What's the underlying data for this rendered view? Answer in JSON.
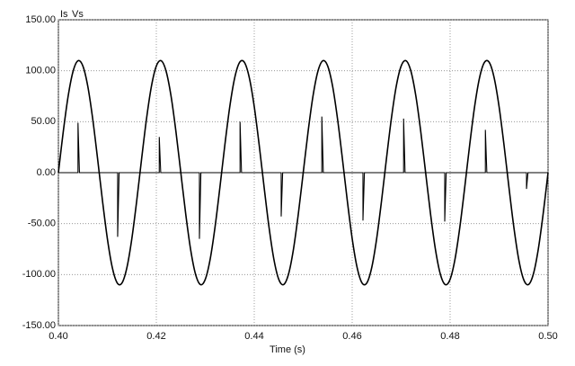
{
  "chart_data": {
    "type": "line",
    "xlabel": "Time (s)",
    "xlim": [
      0.4,
      0.5
    ],
    "xticks": [
      {
        "value": 0.4,
        "label": "0.40"
      },
      {
        "value": 0.42,
        "label": "0.42"
      },
      {
        "value": 0.44,
        "label": "0.44"
      },
      {
        "value": 0.46,
        "label": "0.46"
      },
      {
        "value": 0.48,
        "label": "0.48"
      },
      {
        "value": 0.5,
        "label": "0.50"
      }
    ],
    "ylim": [
      -150,
      150
    ],
    "yticks": [
      {
        "value": -150,
        "label": "-150.00"
      },
      {
        "value": -100,
        "label": "-100.00"
      },
      {
        "value": -50,
        "label": "-50.00"
      },
      {
        "value": 0,
        "label": "0.00"
      },
      {
        "value": 50,
        "label": "50.00"
      },
      {
        "value": 100,
        "label": "100.00"
      },
      {
        "value": 150,
        "label": "150.00"
      }
    ],
    "grid": true,
    "x": [
      0.4,
      0.401,
      0.402,
      0.403,
      0.404,
      0.405,
      0.406,
      0.407,
      0.408,
      0.409,
      0.41,
      0.411,
      0.412,
      0.413,
      0.414,
      0.415,
      0.416,
      0.417,
      0.418,
      0.419,
      0.42,
      0.421,
      0.422,
      0.423,
      0.424,
      0.425,
      0.426,
      0.427,
      0.428,
      0.429,
      0.43,
      0.431,
      0.432,
      0.433,
      0.434,
      0.435,
      0.436,
      0.437,
      0.438,
      0.439,
      0.44,
      0.441,
      0.442,
      0.443,
      0.444,
      0.445,
      0.446,
      0.447,
      0.448,
      0.449,
      0.45,
      0.451,
      0.452,
      0.453,
      0.454,
      0.455,
      0.456,
      0.457,
      0.458,
      0.459,
      0.46,
      0.461,
      0.462,
      0.463,
      0.464,
      0.465,
      0.466,
      0.467,
      0.468,
      0.469,
      0.47,
      0.471,
      0.472,
      0.473,
      0.474,
      0.475,
      0.476,
      0.477,
      0.478,
      0.479,
      0.48,
      0.481,
      0.482,
      0.483,
      0.484,
      0.485,
      0.486,
      0.487,
      0.488,
      0.489,
      0.49,
      0.491,
      0.492,
      0.493,
      0.494,
      0.495,
      0.496,
      0.497,
      0.498,
      0.499,
      0.5
    ],
    "series": [
      {
        "name": "Is",
        "color": "#000000",
        "x": [
          0.4,
          0.404,
          0.404,
          0.4043,
          0.4121,
          0.4121,
          0.4124,
          0.4206,
          0.4206,
          0.4209,
          0.4288,
          0.4288,
          0.4291,
          0.4371,
          0.4371,
          0.4374,
          0.4455,
          0.4455,
          0.4458,
          0.4538,
          0.4538,
          0.4541,
          0.4622,
          0.4622,
          0.4625,
          0.4705,
          0.4705,
          0.4708,
          0.4789,
          0.4789,
          0.4792,
          0.4872,
          0.4872,
          0.4875,
          0.4956,
          0.4956,
          0.4959,
          0.5
        ],
        "values": [
          0,
          0,
          49,
          0,
          0,
          -63,
          0,
          0,
          35,
          0,
          0,
          -65,
          0,
          0,
          50,
          0,
          0,
          -43,
          0,
          0,
          55,
          0,
          0,
          -47,
          0,
          0,
          53,
          0,
          0,
          -48,
          0,
          0,
          42,
          0,
          0,
          -16,
          0,
          0
        ]
      },
      {
        "name": "Vs",
        "color": "#000000",
        "values": [
          0,
          40.5,
          75.3,
          99.5,
          109.8,
          104.6,
          84.8,
          53.0,
          13.8,
          -27.4,
          -64.7,
          -92.9,
          -108.1,
          -108.1,
          -92.9,
          -64.7,
          -27.4,
          13.8,
          53.0,
          84.8,
          104.6,
          109.8,
          99.5,
          75.3,
          40.5,
          0,
          -40.5,
          -75.3,
          -99.5,
          -109.8,
          -104.6,
          -84.8,
          -53.0,
          -13.8,
          27.4,
          64.7,
          92.9,
          108.1,
          108.1,
          92.9,
          64.7,
          27.4,
          -13.8,
          -53.0,
          -84.8,
          -104.6,
          -109.8,
          -99.5,
          -75.3,
          -40.5,
          0,
          40.5,
          75.3,
          99.5,
          109.8,
          104.6,
          84.8,
          53.0,
          13.8,
          -27.4,
          -64.7,
          -92.9,
          -108.1,
          -108.1,
          -92.9,
          -64.7,
          -27.4,
          13.8,
          53.0,
          84.8,
          104.6,
          109.8,
          99.5,
          75.3,
          40.5,
          0,
          -40.5,
          -75.3,
          -99.5,
          -109.8,
          -104.6,
          -84.8,
          -53.0,
          -13.8,
          27.4,
          64.7,
          92.9,
          108.1,
          108.1,
          92.9,
          64.7,
          27.4,
          -13.8,
          -53.0,
          -84.8,
          -104.6,
          -109.8,
          -99.5,
          -75.3,
          -40.5,
          0
        ]
      }
    ]
  }
}
